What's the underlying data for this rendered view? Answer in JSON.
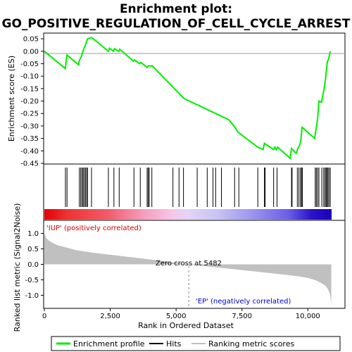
{
  "chart_data": [
    {
      "type": "line",
      "title": "Enrichment plot: GO_POSITIVE_REGULATION_OF_CELL_CYCLE_ARREST",
      "title_line1": "Enrichment plot:",
      "title_line2": "GO_POSITIVE_REGULATION_OF_CELL_CYCLE_ARREST",
      "ylabel": "Enrichment score (ES)",
      "ylim": [
        -0.45,
        0.07
      ],
      "xlim": [
        0,
        10900
      ],
      "yticks": [
        0.05,
        0.0,
        -0.05,
        -0.1,
        -0.15,
        -0.2,
        -0.25,
        -0.3,
        -0.35,
        -0.4,
        -0.45
      ],
      "ytick_labels": [
        "0.05",
        "0.00",
        "-0.05",
        "-0.10",
        "-0.15",
        "-0.20",
        "-0.25",
        "-0.30",
        "-0.35",
        "-0.40",
        "-0.45"
      ],
      "series": [
        {
          "name": "Enrichment profile",
          "color": "#00ee00",
          "x": [
            0,
            800,
            820,
            860,
            1300,
            1320,
            1360,
            1410,
            1450,
            1500,
            1560,
            1640,
            1800,
            2430,
            2480,
            2620,
            2660,
            2820,
            2860,
            3380,
            3420,
            3620,
            3660,
            3900,
            3930,
            3960,
            4060,
            4090,
            5300,
            6900,
            7000,
            7200,
            7350,
            8100,
            8300,
            8350,
            8700,
            8750,
            8800,
            8850,
            9330,
            9380,
            9420,
            9560,
            9620,
            9680,
            9730,
            9780,
            10260,
            10300,
            10340,
            10380,
            10420,
            10520,
            10560,
            10620,
            10660,
            10700,
            10740,
            10780,
            10850
          ],
          "y": [
            0.0,
            -0.07,
            -0.045,
            -0.015,
            -0.055,
            -0.04,
            -0.03,
            -0.02,
            -0.005,
            0.01,
            0.025,
            0.05,
            0.055,
            0.0,
            0.012,
            0.0,
            0.01,
            0.0,
            0.008,
            -0.04,
            -0.035,
            -0.05,
            -0.045,
            -0.065,
            -0.06,
            -0.058,
            -0.06,
            -0.058,
            -0.19,
            -0.27,
            -0.275,
            -0.3,
            -0.325,
            -0.385,
            -0.395,
            -0.37,
            -0.395,
            -0.385,
            -0.395,
            -0.385,
            -0.43,
            -0.39,
            -0.395,
            -0.41,
            -0.39,
            -0.38,
            -0.36,
            -0.305,
            -0.35,
            -0.32,
            -0.295,
            -0.26,
            -0.2,
            -0.205,
            -0.18,
            -0.15,
            -0.12,
            -0.08,
            -0.04,
            -0.035,
            0.0
          ]
        }
      ],
      "zero_line": true
    },
    {
      "type": "barcode",
      "name": "Hits",
      "hit_positions": [
        800,
        860,
        1330,
        1380,
        1430,
        1470,
        1510,
        1560,
        1600,
        1640,
        1790,
        2430,
        2640,
        2840,
        3400,
        3640,
        3900,
        3940,
        3980,
        4080,
        4880,
        5110,
        5280,
        5800,
        6180,
        6400,
        6500,
        6720,
        7220,
        7380,
        8100,
        8350,
        8380,
        8700,
        8830,
        9380,
        9400,
        9600,
        9660,
        9720,
        9760,
        9790,
        10280,
        10320,
        10370,
        10420,
        10530,
        10600,
        10650,
        10690,
        10720,
        10760,
        10800,
        10850
      ]
    },
    {
      "type": "colorbar",
      "name": "rank-gradient",
      "stops": [
        {
          "at": 0.0,
          "color": "#e60000"
        },
        {
          "at": 0.08,
          "color": "#ee3333"
        },
        {
          "at": 0.22,
          "color": "#f25a6a"
        },
        {
          "at": 0.35,
          "color": "#f5a0c0"
        },
        {
          "at": 0.45,
          "color": "#f6c8ea"
        },
        {
          "at": 0.5,
          "color": "#e4d4f8"
        },
        {
          "at": 0.6,
          "color": "#c8c4f4"
        },
        {
          "at": 0.72,
          "color": "#9f96ee"
        },
        {
          "at": 0.85,
          "color": "#6a5ee6"
        },
        {
          "at": 0.93,
          "color": "#2a14c8"
        },
        {
          "at": 1.0,
          "color": "#1a00b8"
        }
      ]
    },
    {
      "type": "area",
      "ylabel": "Ranked list metric (Signal2Noise)",
      "xlabel": "Rank in Ordered Dataset",
      "ylim": [
        -1.4,
        1.4
      ],
      "xlim": [
        0,
        10900
      ],
      "yticks": [
        1.0,
        0.5,
        0.0,
        -0.5,
        -1.0
      ],
      "ytick_labels": [
        "1.0",
        "0.5",
        "0.0",
        "-0.5",
        "-1.0"
      ],
      "xticks": [
        0,
        2500,
        5000,
        7500,
        10000
      ],
      "xtick_labels": [
        "0",
        "2,500",
        "5,000",
        "7,500",
        "10,000"
      ],
      "series": [
        {
          "name": "Ranking metric scores",
          "color": "#c0c0c0",
          "x": [
            0,
            50,
            150,
            300,
            500,
            800,
            1200,
            1800,
            2500,
            3300,
            4200,
            5000,
            5482,
            6000,
            7000,
            8000,
            9000,
            9600,
            10000,
            10300,
            10500,
            10650,
            10750,
            10800,
            10850,
            10870,
            10890
          ],
          "y": [
            1.0,
            0.88,
            0.78,
            0.7,
            0.62,
            0.55,
            0.46,
            0.38,
            0.31,
            0.23,
            0.14,
            0.05,
            0.0,
            -0.05,
            -0.14,
            -0.23,
            -0.32,
            -0.38,
            -0.44,
            -0.52,
            -0.6,
            -0.68,
            -0.78,
            -0.88,
            -1.02,
            -1.15,
            -1.35
          ]
        }
      ],
      "annotations": {
        "zero_cross": "Zero cross at 5482",
        "zero_cross_x": 5482,
        "positive": "'IUP' (positively correlated)",
        "negative": "'EP' (negatively correlated)"
      }
    }
  ],
  "legend": {
    "items": [
      {
        "label": "Enrichment profile",
        "color": "#00ee00"
      },
      {
        "label": "Hits",
        "color": "#000000"
      },
      {
        "label": "Ranking metric scores",
        "color": "#c0c0c0"
      }
    ]
  }
}
